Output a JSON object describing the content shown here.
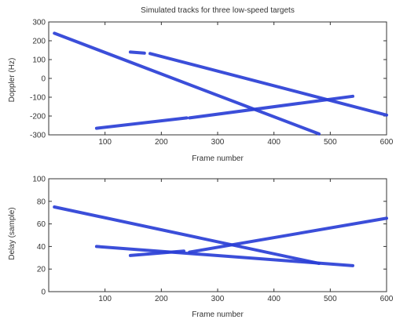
{
  "colors": {
    "series": "#2a3fd6",
    "axis": "#333333",
    "background": "#ffffff"
  },
  "chart_data": [
    {
      "type": "line",
      "title": "Simulated tracks for three low-speed targets",
      "xlabel": "Frame number",
      "ylabel": "Doppler (Hz)",
      "xlim": [
        0,
        600
      ],
      "ylim": [
        -300,
        300
      ],
      "xticks": [
        100,
        200,
        300,
        400,
        500,
        600
      ],
      "yticks": [
        300,
        200,
        100,
        0,
        -100,
        -200,
        -300
      ],
      "series": [
        {
          "segments": [
            [
              [
                10,
                240
              ],
              [
                480,
                -295
              ]
            ]
          ]
        },
        {
          "segments": [
            [
              [
                145,
                140
              ],
              [
                170,
                134
              ]
            ],
            [
              [
                180,
                132
              ],
              [
                600,
                -195
              ]
            ]
          ]
        },
        {
          "segments": [
            [
              [
                85,
                -265
              ],
              [
                245,
                -210
              ]
            ],
            [
              [
                250,
                -210
              ],
              [
                540,
                -95
              ]
            ]
          ]
        }
      ]
    },
    {
      "type": "line",
      "title": "",
      "xlabel": "Frame number",
      "ylabel": "Delay (sample)",
      "xlim": [
        0,
        600
      ],
      "ylim": [
        0,
        100
      ],
      "xticks": [
        100,
        200,
        300,
        400,
        500,
        600
      ],
      "yticks": [
        100,
        80,
        60,
        40,
        20,
        0
      ],
      "series": [
        {
          "segments": [
            [
              [
                10,
                75
              ],
              [
                480,
                25
              ]
            ]
          ]
        },
        {
          "segments": [
            [
              [
                85,
                40
              ],
              [
                540,
                23
              ]
            ]
          ]
        },
        {
          "segments": [
            [
              [
                145,
                32
              ],
              [
                240,
                36
              ]
            ],
            [
              [
                250,
                35
              ],
              [
                600,
                65
              ]
            ]
          ]
        }
      ]
    }
  ]
}
